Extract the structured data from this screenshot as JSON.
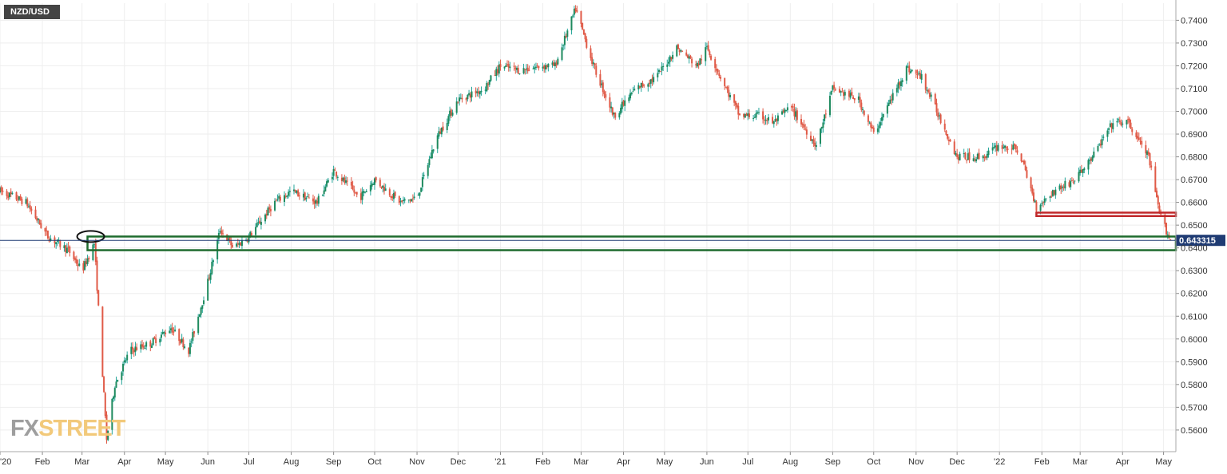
{
  "symbol": "NZD/USD",
  "watermark": {
    "part1": "FX",
    "part2": "STREET"
  },
  "colors": {
    "up": "#26a69a",
    "up_body": "#1e8a5e",
    "down": "#e05a47",
    "grid": "#eeeeee",
    "axis_text": "#333333",
    "price_line": "#1f3b73",
    "price_badge": "#1f3b73",
    "support_box": "#1e6b2e",
    "resistance_box": "#c0282a"
  },
  "chart_data": {
    "type": "candlestick",
    "title": "NZD/USD",
    "ylim": [
      0.5505,
      0.7475
    ],
    "y_ticks": [
      "0.7400",
      "0.7300",
      "0.7200",
      "0.7100",
      "0.7000",
      "0.6900",
      "0.6800",
      "0.6700",
      "0.6600",
      "0.6500",
      "0.6400",
      "0.6300",
      "0.6200",
      "0.6100",
      "0.6000",
      "0.5900",
      "0.5800",
      "0.5700",
      "0.5600"
    ],
    "x_ticks": [
      "'20",
      "Feb",
      "Mar",
      "Apr",
      "May",
      "Jun",
      "Jul",
      "Aug",
      "Sep",
      "Oct",
      "Nov",
      "Dec",
      "'21",
      "Feb",
      "Mar",
      "Apr",
      "May",
      "Jun",
      "Jul",
      "Aug",
      "Sep",
      "Oct",
      "Nov",
      "Dec",
      "'22",
      "Feb",
      "Mar",
      "Apr",
      "May"
    ],
    "x_range": [
      "2020-01-01",
      "2022-05-10"
    ],
    "current_price": "0.643315",
    "grid": true,
    "path": [
      [
        "2020-01-01",
        0.665
      ],
      [
        "2020-01-20",
        0.66
      ],
      [
        "2020-02-05",
        0.645
      ],
      [
        "2020-02-20",
        0.639
      ],
      [
        "2020-03-01",
        0.63
      ],
      [
        "2020-03-10",
        0.642
      ],
      [
        "2020-03-19",
        0.556
      ],
      [
        "2020-03-25",
        0.58
      ],
      [
        "2020-04-05",
        0.595
      ],
      [
        "2020-04-20",
        0.598
      ],
      [
        "2020-05-05",
        0.605
      ],
      [
        "2020-05-18",
        0.595
      ],
      [
        "2020-06-01",
        0.625
      ],
      [
        "2020-06-10",
        0.648
      ],
      [
        "2020-06-20",
        0.64
      ],
      [
        "2020-07-01",
        0.645
      ],
      [
        "2020-07-20",
        0.66
      ],
      [
        "2020-08-01",
        0.665
      ],
      [
        "2020-08-20",
        0.66
      ],
      [
        "2020-09-01",
        0.674
      ],
      [
        "2020-09-20",
        0.662
      ],
      [
        "2020-10-01",
        0.67
      ],
      [
        "2020-10-20",
        0.66
      ],
      [
        "2020-11-01",
        0.662
      ],
      [
        "2020-11-15",
        0.688
      ],
      [
        "2020-12-01",
        0.705
      ],
      [
        "2020-12-20",
        0.71
      ],
      [
        "2021-01-01",
        0.72
      ],
      [
        "2021-01-15",
        0.718
      ],
      [
        "2021-02-01",
        0.72
      ],
      [
        "2021-02-10",
        0.72
      ],
      [
        "2021-02-25",
        0.745
      ],
      [
        "2021-03-10",
        0.72
      ],
      [
        "2021-03-25",
        0.698
      ],
      [
        "2021-04-10",
        0.71
      ],
      [
        "2021-04-25",
        0.715
      ],
      [
        "2021-05-10",
        0.728
      ],
      [
        "2021-05-25",
        0.72
      ],
      [
        "2021-06-01",
        0.728
      ],
      [
        "2021-06-15",
        0.71
      ],
      [
        "2021-06-25",
        0.698
      ],
      [
        "2021-07-10",
        0.698
      ],
      [
        "2021-07-20",
        0.695
      ],
      [
        "2021-08-01",
        0.702
      ],
      [
        "2021-08-20",
        0.685
      ],
      [
        "2021-09-01",
        0.71
      ],
      [
        "2021-09-20",
        0.705
      ],
      [
        "2021-10-01",
        0.69
      ],
      [
        "2021-10-25",
        0.719
      ],
      [
        "2021-11-05",
        0.715
      ],
      [
        "2021-11-20",
        0.695
      ],
      [
        "2021-12-01",
        0.68
      ],
      [
        "2021-12-20",
        0.68
      ],
      [
        "2022-01-01",
        0.685
      ],
      [
        "2022-01-15",
        0.683
      ],
      [
        "2022-01-28",
        0.658
      ],
      [
        "2022-02-10",
        0.665
      ],
      [
        "2022-02-25",
        0.67
      ],
      [
        "2022-03-10",
        0.68
      ],
      [
        "2022-03-25",
        0.695
      ],
      [
        "2022-04-05",
        0.695
      ],
      [
        "2022-04-20",
        0.68
      ],
      [
        "2022-04-28",
        0.655
      ],
      [
        "2022-05-06",
        0.6433
      ]
    ],
    "annotations": [
      {
        "type": "rectangle",
        "label": "resistance-zone",
        "y_low": 0.654,
        "y_high": 0.6555,
        "x_start": "2022-01-28",
        "x_end": "2022-05-10"
      },
      {
        "type": "rectangle",
        "label": "support-zone",
        "y_low": 0.639,
        "y_high": 0.645,
        "x_start": "2020-03-05",
        "x_end": "2022-05-10"
      },
      {
        "type": "ellipse",
        "label": "march-2020-high",
        "y": 0.645,
        "x": "2020-03-05"
      }
    ]
  }
}
